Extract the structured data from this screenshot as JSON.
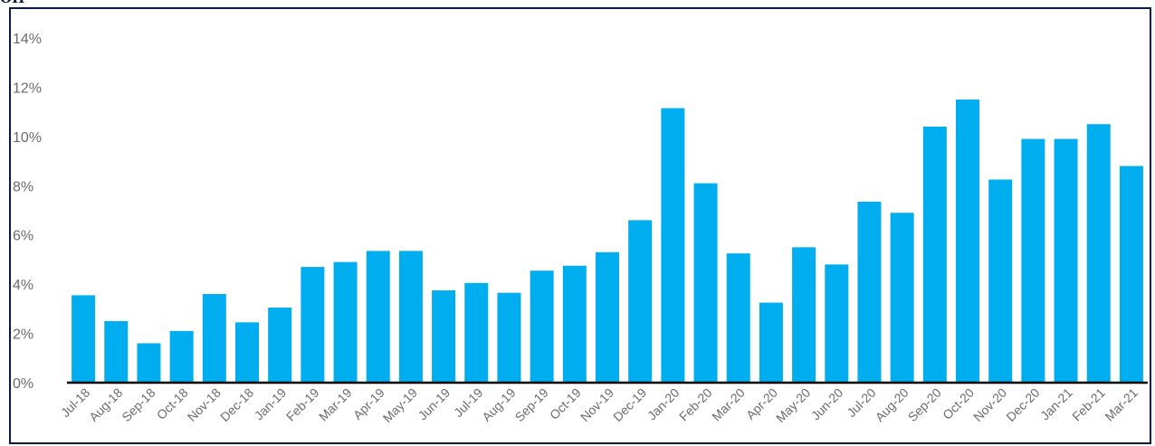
{
  "title_fragment": "OH",
  "colors": {
    "bar": "#00AEEF",
    "frame": "#0A1A44",
    "axis": "#000000",
    "tick_text": "#6B6B6B"
  },
  "chart_data": {
    "type": "bar",
    "categories": [
      "Jul-18",
      "Aug-18",
      "Sep-18",
      "Oct-18",
      "Nov-18",
      "Dec-18",
      "Jan-19",
      "Feb-19",
      "Mar-19",
      "Apr-19",
      "May-19",
      "Jun-19",
      "Jul-19",
      "Aug-19",
      "Sep-19",
      "Oct-19",
      "Nov-19",
      "Dec-19",
      "Jan-20",
      "Feb-20",
      "Mar-20",
      "Apr-20",
      "May-20",
      "Jun-20",
      "Jul-20",
      "Aug-20",
      "Sep-20",
      "Oct-20",
      "Nov-20",
      "Dec-20",
      "Jan-21",
      "Feb-21",
      "Mar-21"
    ],
    "values": [
      3.55,
      2.5,
      1.6,
      2.1,
      3.6,
      2.45,
      3.05,
      4.7,
      4.9,
      5.35,
      5.35,
      3.75,
      4.05,
      3.65,
      4.55,
      4.75,
      5.3,
      6.6,
      11.15,
      8.1,
      5.25,
      3.25,
      5.5,
      4.8,
      7.35,
      6.9,
      10.4,
      11.5,
      8.25,
      9.9,
      9.9,
      10.5,
      8.8
    ],
    "y_unit": "%",
    "yticks": [
      "0%",
      "2%",
      "4%",
      "6%",
      "8%",
      "10%",
      "12%",
      "14%"
    ],
    "ylim": [
      0,
      14
    ],
    "grid": false,
    "legend": "none",
    "xlabel": "",
    "ylabel": ""
  }
}
